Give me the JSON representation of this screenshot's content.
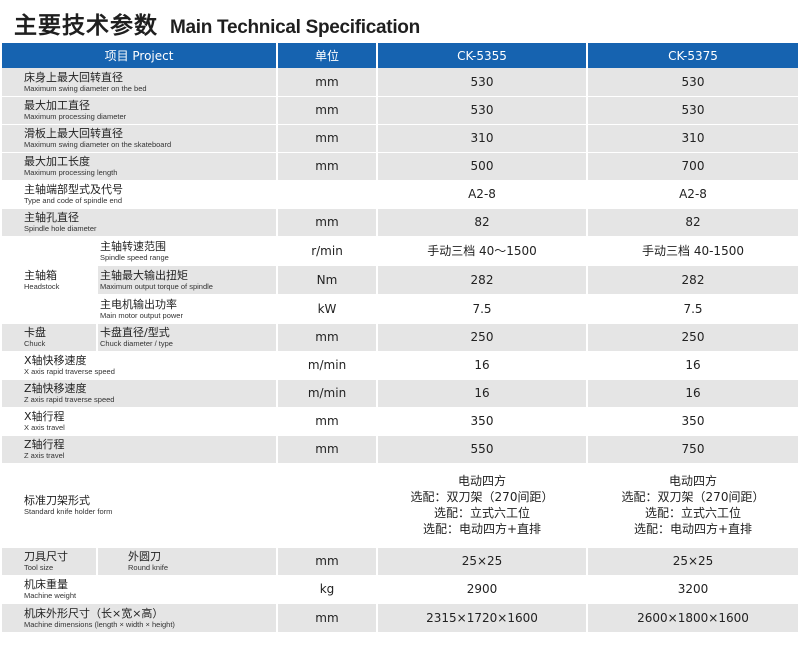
{
  "page": {
    "title_zh": "主要技术参数",
    "title_en": "Main Technical Specification"
  },
  "header": {
    "project": "项目 Project",
    "unit": "单位",
    "model1": "CK-5355",
    "model2": "CK-5375"
  },
  "rows": {
    "swing_bed": {
      "zh": "床身上最大回转直径",
      "en": "Maximum swing diameter on the bed",
      "unit": "mm",
      "v1": "530",
      "v2": "530"
    },
    "proc_dia": {
      "zh": "最大加工直径",
      "en": "Maximum processing diameter",
      "unit": "mm",
      "v1": "530",
      "v2": "530"
    },
    "swing_skate": {
      "zh": "滑板上最大回转直径",
      "en": "Maximum swing diameter on the skateboard",
      "unit": "mm",
      "v1": "310",
      "v2": "310"
    },
    "proc_len": {
      "zh": "最大加工长度",
      "en": "Maximum processing length",
      "unit": "mm",
      "v1": "500",
      "v2": "700"
    },
    "spindle_end": {
      "zh": "主轴端部型式及代号",
      "en": "Type and code of spindle end",
      "unit": "",
      "v1": "A2-8",
      "v2": "A2-8"
    },
    "spindle_hole": {
      "zh": "主轴孔直径",
      "en": "Spindle hole diameter",
      "unit": "mm",
      "v1": "82",
      "v2": "82"
    },
    "headstock": {
      "zh": "主轴箱",
      "en": "Headstock"
    },
    "speed_range": {
      "zh": "主轴转速范围",
      "en": "Spindle speed range",
      "unit": "r/min",
      "v1": "手动三档 40～1500",
      "v2": "手动三档 40-1500"
    },
    "torque": {
      "zh": "主轴最大输出扭矩",
      "en": "Maximum output torque of spindle",
      "unit": "Nm",
      "v1": "282",
      "v2": "282"
    },
    "motor": {
      "zh": "主电机输出功率",
      "en": "Main motor output power",
      "unit": "kW",
      "v1": "7.5",
      "v2": "7.5"
    },
    "chuck": {
      "zh": "卡盘",
      "en": "Chuck",
      "sub_zh": "卡盘直径/型式",
      "sub_en": "Chuck diameter / type",
      "unit": "mm",
      "v1": "250",
      "v2": "250"
    },
    "x_rapid": {
      "zh": "X轴快移速度",
      "en": "X axis rapid traverse speed",
      "unit": "m/min",
      "v1": "16",
      "v2": "16"
    },
    "z_rapid": {
      "zh": "Z轴快移速度",
      "en": "Z axis rapid traverse speed",
      "unit": "m/min",
      "v1": "16",
      "v2": "16"
    },
    "x_travel": {
      "zh": "X轴行程",
      "en": "X axis travel",
      "unit": "mm",
      "v1": "350",
      "v2": "350"
    },
    "z_travel": {
      "zh": "Z轴行程",
      "en": "Z axis travel",
      "unit": "mm",
      "v1": "550",
      "v2": "750"
    },
    "tool_holder": {
      "zh": "标准刀架形式",
      "en": "Standard knife holder form",
      "unit": "",
      "v1": [
        "电动四方",
        "选配：双刀架（270间距）",
        "选配：立式六工位",
        "选配：电动四方+直排"
      ],
      "v2": [
        "电动四方",
        "选配：双刀架（270间距）",
        "选配：立式六工位",
        "选配：电动四方+直排"
      ]
    },
    "tool_size": {
      "zh": "刀具尺寸",
      "en": "Tool size",
      "sub_zh": "外圆刀",
      "sub_en": "Round knife",
      "unit": "mm",
      "v1": "25×25",
      "v2": "25×25"
    },
    "weight": {
      "zh": "机床重量",
      "en": "Machine weight",
      "unit": "kg",
      "v1": "2900",
      "v2": "3200"
    },
    "dimensions": {
      "zh": "机床外形尺寸（长×宽×高）",
      "en": "Machine dimensions (length × width × height)",
      "unit": "mm",
      "v1": "2315×1720×1600",
      "v2": "2600×1800×1600"
    }
  }
}
